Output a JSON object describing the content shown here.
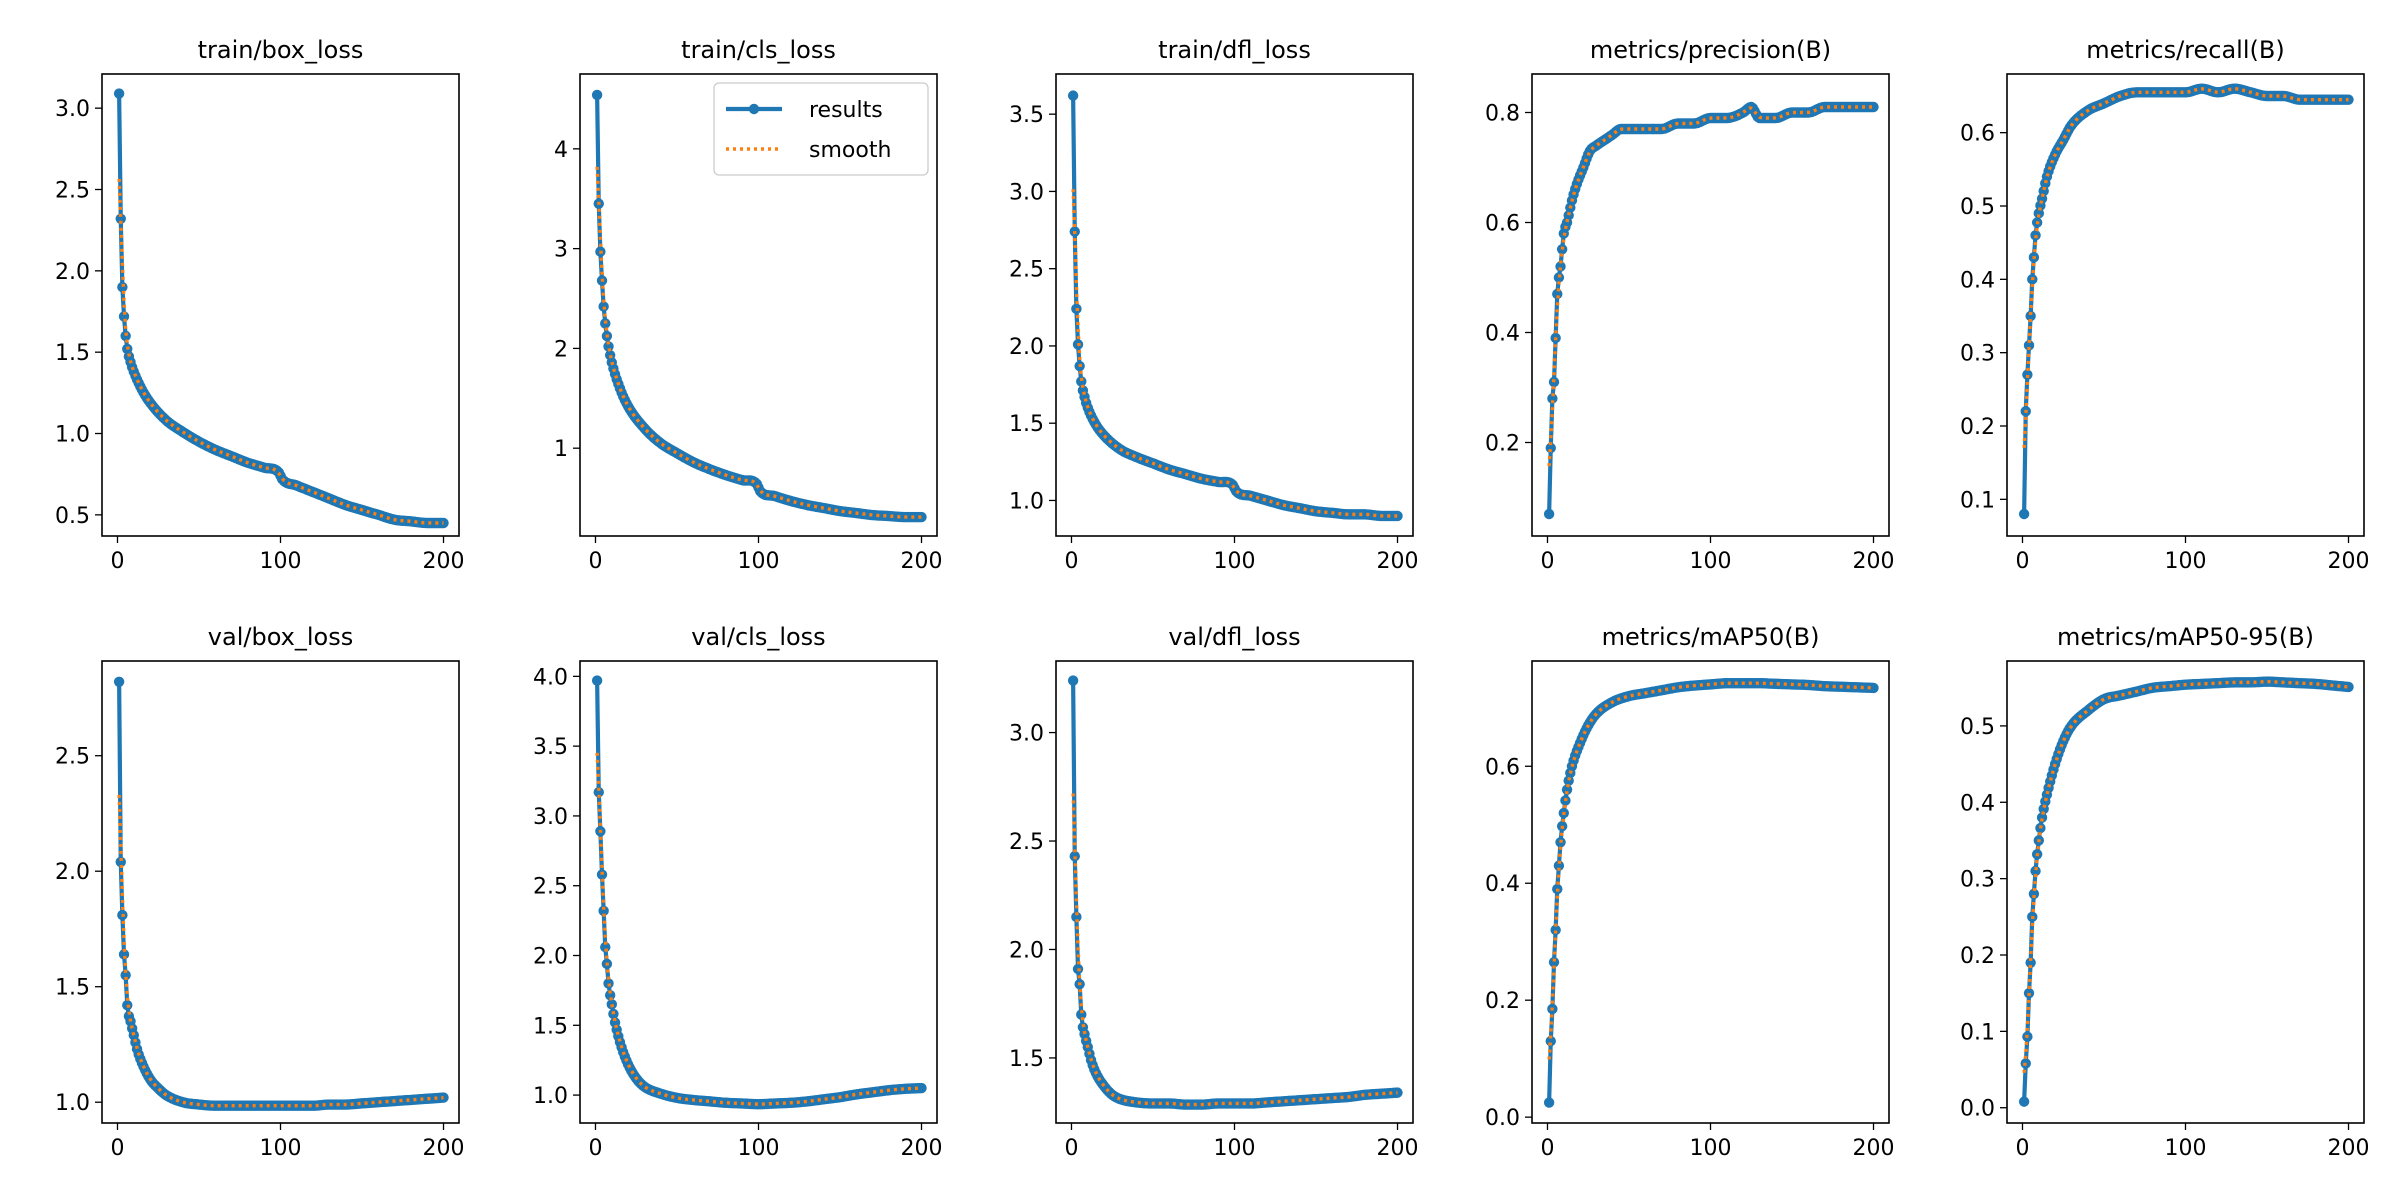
{
  "figure": {
    "legend": {
      "location": "upper-right",
      "panel": "train/cls_loss",
      "results_label": "results",
      "smooth_label": "smooth"
    }
  },
  "colors": {
    "results": "#1f77b4",
    "smooth": "#ff7f0e"
  },
  "chart_data": [
    {
      "type": "line",
      "title": "train/box_loss",
      "xlabel": "",
      "ylabel": "",
      "grid": false,
      "xlim": [
        -9.5,
        209.5
      ],
      "ylim": [
        0.37,
        3.21
      ],
      "xticks": [
        0,
        100,
        200
      ],
      "yticks": [
        0.5,
        1.0,
        1.5,
        2.0,
        2.5,
        3.0
      ],
      "ytick_labels": [
        "0.5",
        "1.0",
        "1.5",
        "2.0",
        "2.5",
        "3.0"
      ],
      "anchors": {
        "x": [
          1,
          2,
          3,
          4,
          5,
          6,
          8,
          10,
          15,
          20,
          30,
          40,
          50,
          60,
          70,
          80,
          90,
          99,
          101,
          110,
          120,
          130,
          140,
          150,
          160,
          170,
          180,
          190,
          200
        ],
        "y": [
          3.09,
          2.32,
          1.9,
          1.72,
          1.6,
          1.52,
          1.44,
          1.38,
          1.27,
          1.19,
          1.08,
          1.01,
          0.95,
          0.9,
          0.86,
          0.82,
          0.79,
          0.76,
          0.72,
          0.68,
          0.64,
          0.6,
          0.56,
          0.53,
          0.5,
          0.47,
          0.46,
          0.45,
          0.45
        ]
      },
      "series": [
        {
          "name": "results"
        },
        {
          "name": "smooth"
        }
      ]
    },
    {
      "type": "line",
      "title": "train/cls_loss",
      "xlabel": "",
      "ylabel": "",
      "grid": false,
      "xlim": [
        -9.5,
        209.5
      ],
      "ylim": [
        0.12,
        4.75
      ],
      "xticks": [
        0,
        100,
        200
      ],
      "yticks": [
        1,
        2,
        3,
        4
      ],
      "ytick_labels": [
        "1",
        "2",
        "3",
        "4"
      ],
      "anchors": {
        "x": [
          1,
          2,
          3,
          4,
          5,
          6,
          8,
          10,
          15,
          20,
          30,
          40,
          50,
          60,
          70,
          80,
          90,
          99,
          101,
          110,
          120,
          130,
          140,
          150,
          160,
          170,
          180,
          190,
          200
        ],
        "y": [
          4.54,
          3.45,
          2.97,
          2.68,
          2.42,
          2.25,
          2.02,
          1.86,
          1.6,
          1.42,
          1.2,
          1.05,
          0.95,
          0.86,
          0.79,
          0.73,
          0.68,
          0.64,
          0.57,
          0.52,
          0.47,
          0.43,
          0.4,
          0.37,
          0.35,
          0.33,
          0.32,
          0.31,
          0.31
        ]
      },
      "series": [
        {
          "name": "results"
        },
        {
          "name": "smooth"
        }
      ]
    },
    {
      "type": "line",
      "title": "train/dfl_loss",
      "xlabel": "",
      "ylabel": "",
      "grid": false,
      "xlim": [
        -9.5,
        209.5
      ],
      "ylim": [
        0.77,
        3.76
      ],
      "xticks": [
        0,
        100,
        200
      ],
      "yticks": [
        1.0,
        1.5,
        2.0,
        2.5,
        3.0,
        3.5
      ],
      "ytick_labels": [
        "1.0",
        "1.5",
        "2.0",
        "2.5",
        "3.0",
        "3.5"
      ],
      "anchors": {
        "x": [
          1,
          2,
          3,
          4,
          5,
          6,
          8,
          10,
          15,
          20,
          30,
          40,
          50,
          60,
          70,
          80,
          90,
          99,
          101,
          110,
          120,
          130,
          140,
          150,
          160,
          170,
          180,
          190,
          200
        ],
        "y": [
          3.62,
          2.74,
          2.24,
          2.01,
          1.87,
          1.77,
          1.67,
          1.6,
          1.49,
          1.42,
          1.33,
          1.28,
          1.24,
          1.2,
          1.17,
          1.14,
          1.12,
          1.1,
          1.06,
          1.03,
          1.0,
          0.97,
          0.95,
          0.93,
          0.92,
          0.91,
          0.91,
          0.9,
          0.9
        ]
      },
      "series": [
        {
          "name": "results"
        },
        {
          "name": "smooth"
        }
      ]
    },
    {
      "type": "line",
      "title": "metrics/precision(B)",
      "xlabel": "",
      "ylabel": "",
      "grid": false,
      "xlim": [
        -9.5,
        209.5
      ],
      "ylim": [
        0.03,
        0.87
      ],
      "xticks": [
        0,
        100,
        200
      ],
      "yticks": [
        0.2,
        0.4,
        0.6,
        0.8
      ],
      "ytick_labels": [
        "0.2",
        "0.4",
        "0.6",
        "0.8"
      ],
      "anchors": {
        "x": [
          1,
          2,
          3,
          4,
          5,
          6,
          7,
          8,
          10,
          12,
          15,
          18,
          22,
          26,
          30,
          35,
          40,
          45,
          50,
          60,
          70,
          80,
          90,
          100,
          110,
          120,
          125,
          130,
          140,
          150,
          160,
          170,
          180,
          190,
          200
        ],
        "y": [
          0.07,
          0.19,
          0.28,
          0.31,
          0.39,
          0.47,
          0.5,
          0.52,
          0.58,
          0.6,
          0.64,
          0.67,
          0.7,
          0.73,
          0.74,
          0.75,
          0.76,
          0.77,
          0.77,
          0.77,
          0.77,
          0.78,
          0.78,
          0.79,
          0.79,
          0.8,
          0.81,
          0.79,
          0.79,
          0.8,
          0.8,
          0.81,
          0.81,
          0.81,
          0.81
        ]
      },
      "series": [
        {
          "name": "results"
        },
        {
          "name": "smooth"
        }
      ]
    },
    {
      "type": "line",
      "title": "metrics/recall(B)",
      "xlabel": "",
      "ylabel": "",
      "grid": false,
      "xlim": [
        -9.5,
        209.5
      ],
      "ylim": [
        0.05,
        0.68
      ],
      "xticks": [
        0,
        100,
        200
      ],
      "yticks": [
        0.1,
        0.2,
        0.3,
        0.4,
        0.5,
        0.6
      ],
      "ytick_labels": [
        "0.1",
        "0.2",
        "0.3",
        "0.4",
        "0.5",
        "0.6"
      ],
      "anchors": {
        "x": [
          1,
          2,
          3,
          4,
          5,
          6,
          7,
          8,
          10,
          12,
          15,
          20,
          25,
          30,
          40,
          50,
          60,
          70,
          80,
          90,
          100,
          110,
          120,
          130,
          140,
          150,
          160,
          170,
          180,
          190,
          200
        ],
        "y": [
          0.08,
          0.22,
          0.27,
          0.31,
          0.35,
          0.4,
          0.43,
          0.46,
          0.49,
          0.51,
          0.54,
          0.57,
          0.59,
          0.61,
          0.63,
          0.64,
          0.65,
          0.655,
          0.655,
          0.655,
          0.655,
          0.66,
          0.655,
          0.66,
          0.655,
          0.65,
          0.65,
          0.645,
          0.645,
          0.645,
          0.645
        ]
      },
      "series": [
        {
          "name": "results"
        },
        {
          "name": "smooth"
        }
      ]
    },
    {
      "type": "line",
      "title": "val/box_loss",
      "xlabel": "",
      "ylabel": "",
      "grid": false,
      "xlim": [
        -9.5,
        209.5
      ],
      "ylim": [
        0.91,
        2.91
      ],
      "xticks": [
        0,
        100,
        200
      ],
      "yticks": [
        1.0,
        1.5,
        2.0,
        2.5
      ],
      "ytick_labels": [
        "1.0",
        "1.5",
        "2.0",
        "2.5"
      ],
      "anchors": {
        "x": [
          1,
          2,
          3,
          4,
          5,
          6,
          8,
          10,
          12,
          15,
          20,
          25,
          30,
          40,
          50,
          60,
          70,
          80,
          90,
          100,
          110,
          120,
          130,
          140,
          150,
          160,
          170,
          180,
          190,
          200
        ],
        "y": [
          2.82,
          2.04,
          1.81,
          1.64,
          1.55,
          1.42,
          1.35,
          1.29,
          1.23,
          1.17,
          1.1,
          1.06,
          1.03,
          1.0,
          0.99,
          0.985,
          0.985,
          0.985,
          0.985,
          0.985,
          0.985,
          0.985,
          0.99,
          0.99,
          0.995,
          1.0,
          1.005,
          1.01,
          1.015,
          1.02
        ]
      },
      "series": [
        {
          "name": "results"
        },
        {
          "name": "smooth"
        }
      ]
    },
    {
      "type": "line",
      "title": "val/cls_loss",
      "xlabel": "",
      "ylabel": "",
      "grid": false,
      "xlim": [
        -9.5,
        209.5
      ],
      "ylim": [
        0.8,
        4.11
      ],
      "xticks": [
        0,
        100,
        200
      ],
      "yticks": [
        1.0,
        1.5,
        2.0,
        2.5,
        3.0,
        3.5,
        4.0
      ],
      "ytick_labels": [
        "1.0",
        "1.5",
        "2.0",
        "2.5",
        "3.0",
        "3.5",
        "4.0"
      ],
      "anchors": {
        "x": [
          1,
          2,
          3,
          4,
          5,
          6,
          7,
          8,
          10,
          12,
          15,
          20,
          25,
          30,
          40,
          50,
          60,
          70,
          80,
          90,
          100,
          110,
          120,
          130,
          140,
          150,
          160,
          170,
          180,
          190,
          200
        ],
        "y": [
          3.97,
          3.17,
          2.89,
          2.58,
          2.32,
          2.06,
          1.94,
          1.8,
          1.65,
          1.52,
          1.38,
          1.22,
          1.12,
          1.06,
          1.01,
          0.98,
          0.965,
          0.955,
          0.945,
          0.94,
          0.935,
          0.94,
          0.945,
          0.955,
          0.97,
          0.985,
          1.005,
          1.02,
          1.035,
          1.045,
          1.05
        ]
      },
      "series": [
        {
          "name": "results"
        },
        {
          "name": "smooth"
        }
      ]
    },
    {
      "type": "line",
      "title": "val/dfl_loss",
      "xlabel": "",
      "ylabel": "",
      "grid": false,
      "xlim": [
        -9.5,
        209.5
      ],
      "ylim": [
        1.2,
        3.33
      ],
      "xticks": [
        0,
        100,
        200
      ],
      "yticks": [
        1.5,
        2.0,
        2.5,
        3.0
      ],
      "ytick_labels": [
        "1.5",
        "2.0",
        "2.5",
        "3.0"
      ],
      "anchors": {
        "x": [
          1,
          2,
          3,
          4,
          5,
          6,
          8,
          10,
          12,
          15,
          20,
          25,
          30,
          40,
          50,
          60,
          70,
          80,
          90,
          100,
          110,
          120,
          130,
          140,
          150,
          160,
          170,
          180,
          190,
          200
        ],
        "y": [
          3.24,
          2.43,
          2.15,
          1.91,
          1.84,
          1.7,
          1.61,
          1.55,
          1.49,
          1.43,
          1.37,
          1.33,
          1.31,
          1.295,
          1.29,
          1.29,
          1.285,
          1.285,
          1.29,
          1.29,
          1.29,
          1.295,
          1.3,
          1.305,
          1.31,
          1.315,
          1.32,
          1.33,
          1.335,
          1.34
        ]
      },
      "series": [
        {
          "name": "results"
        },
        {
          "name": "smooth"
        }
      ]
    },
    {
      "type": "line",
      "title": "metrics/mAP50(B)",
      "xlabel": "",
      "ylabel": "",
      "grid": false,
      "xlim": [
        -9.5,
        209.5
      ],
      "ylim": [
        -0.01,
        0.78
      ],
      "xticks": [
        0,
        100,
        200
      ],
      "yticks": [
        0.0,
        0.2,
        0.4,
        0.6
      ],
      "ytick_labels": [
        "0.0",
        "0.2",
        "0.4",
        "0.6"
      ],
      "anchors": {
        "x": [
          1,
          2,
          3,
          4,
          5,
          6,
          7,
          8,
          10,
          12,
          15,
          20,
          25,
          30,
          40,
          50,
          60,
          70,
          80,
          90,
          100,
          110,
          120,
          130,
          140,
          150,
          160,
          170,
          180,
          190,
          200
        ],
        "y": [
          0.025,
          0.13,
          0.185,
          0.265,
          0.32,
          0.39,
          0.43,
          0.47,
          0.52,
          0.56,
          0.6,
          0.64,
          0.67,
          0.69,
          0.71,
          0.72,
          0.725,
          0.73,
          0.735,
          0.738,
          0.74,
          0.742,
          0.742,
          0.742,
          0.741,
          0.74,
          0.739,
          0.737,
          0.736,
          0.735,
          0.734
        ]
      },
      "series": [
        {
          "name": "results"
        },
        {
          "name": "smooth"
        }
      ]
    },
    {
      "type": "line",
      "title": "metrics/mAP50-95(B)",
      "xlabel": "",
      "ylabel": "",
      "grid": false,
      "xlim": [
        -9.5,
        209.5
      ],
      "ylim": [
        -0.02,
        0.585
      ],
      "xticks": [
        0,
        100,
        200
      ],
      "yticks": [
        0.0,
        0.1,
        0.2,
        0.3,
        0.4,
        0.5
      ],
      "ytick_labels": [
        "0.0",
        "0.1",
        "0.2",
        "0.3",
        "0.4",
        "0.5"
      ],
      "anchors": {
        "x": [
          1,
          2,
          3,
          4,
          5,
          6,
          7,
          8,
          10,
          12,
          15,
          20,
          25,
          30,
          40,
          50,
          60,
          70,
          80,
          90,
          100,
          110,
          120,
          130,
          140,
          150,
          160,
          170,
          180,
          190,
          200
        ],
        "y": [
          0.008,
          0.058,
          0.093,
          0.15,
          0.19,
          0.25,
          0.28,
          0.31,
          0.35,
          0.38,
          0.41,
          0.45,
          0.48,
          0.5,
          0.52,
          0.535,
          0.54,
          0.545,
          0.55,
          0.552,
          0.554,
          0.555,
          0.556,
          0.557,
          0.557,
          0.558,
          0.557,
          0.556,
          0.555,
          0.553,
          0.551
        ]
      },
      "series": [
        {
          "name": "results"
        },
        {
          "name": "smooth"
        }
      ]
    }
  ]
}
